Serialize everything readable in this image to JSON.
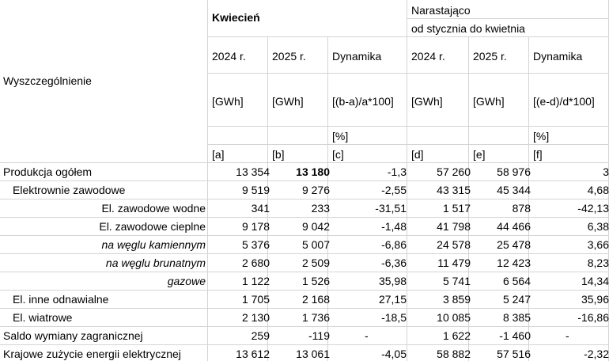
{
  "header": {
    "row_label": "Wyszczególnienie",
    "month_title": "Kwiecień",
    "cumulative_title_line1": "Narastająco",
    "cumulative_title_line2": "od stycznia do kwietnia",
    "columns": [
      {
        "year": "2024 r.",
        "unit": "[GWh]",
        "pct": "",
        "letter": "[a]"
      },
      {
        "year": "2025 r.",
        "unit": "[GWh]",
        "pct": "",
        "letter": "[b]"
      },
      {
        "year": "Dynamika",
        "unit": "[(b-a)/a*100]",
        "pct": "[%]",
        "letter": "[c]"
      },
      {
        "year": "2024 r.",
        "unit": "[GWh]",
        "pct": "",
        "letter": "[d]"
      },
      {
        "year": "2025 r.",
        "unit": "[GWh]",
        "pct": "",
        "letter": "[e]"
      },
      {
        "year": "Dynamika",
        "unit": "[(e-d)/d*100]",
        "pct": "[%]",
        "letter": "[f]"
      }
    ]
  },
  "rows": [
    {
      "label": "Produkcja ogółem",
      "values": [
        "13 354",
        "13 180",
        "-1,3",
        "57 260",
        "58 976",
        "3"
      ]
    },
    {
      "label": "Elektrownie zawodowe",
      "values": [
        "9 519",
        "9 276",
        "-2,55",
        "43 315",
        "45 344",
        "4,68"
      ]
    },
    {
      "label": "El. zawodowe wodne",
      "values": [
        "341",
        "233",
        "-31,51",
        "1 517",
        "878",
        "-42,13"
      ]
    },
    {
      "label": "El. zawodowe cieplne",
      "values": [
        "9 178",
        "9 042",
        "-1,48",
        "41 798",
        "44 466",
        "6,38"
      ]
    },
    {
      "label": "na węglu kamiennym",
      "values": [
        "5 376",
        "5 007",
        "-6,86",
        "24 578",
        "25 478",
        "3,66"
      ]
    },
    {
      "label": "na węglu brunatnym",
      "values": [
        "2 680",
        "2 509",
        "-6,36",
        "11 479",
        "12 423",
        "8,23"
      ]
    },
    {
      "label": "gazowe",
      "values": [
        "1 122",
        "1 526",
        "35,98",
        "5 741",
        "6 564",
        "14,34"
      ]
    },
    {
      "label": "El. inne odnawialne",
      "values": [
        "1 705",
        "2 168",
        "27,15",
        "3 859",
        "5 247",
        "35,96"
      ]
    },
    {
      "label": "El. wiatrowe",
      "values": [
        "2 130",
        "1 736",
        "-18,5",
        "10 085",
        "8 385",
        "-16,86"
      ]
    },
    {
      "label": "Saldo wymiany zagranicznej",
      "values": [
        "259",
        "-119",
        "-",
        "1 622",
        "-1 460",
        "-"
      ]
    },
    {
      "label": "Krajowe zużycie energii elektrycznej",
      "values": [
        "13 612",
        "13 061",
        "-4,05",
        "58 882",
        "57 516",
        "-2,32"
      ]
    }
  ]
}
